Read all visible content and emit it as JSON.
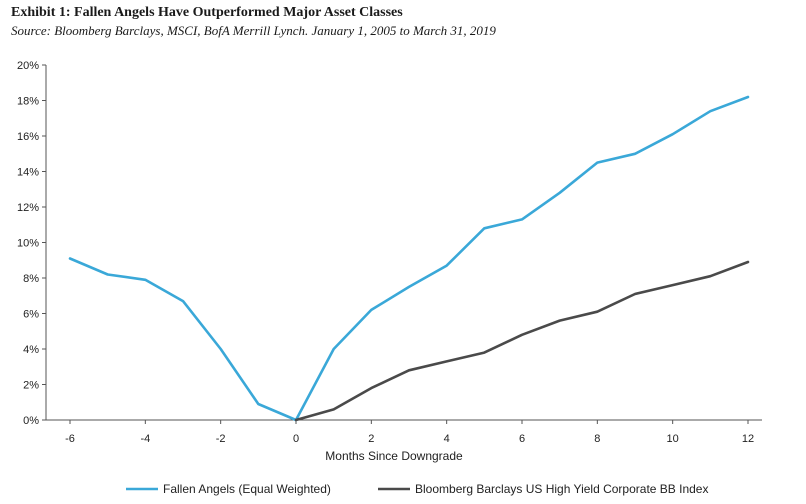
{
  "header": {
    "title": "Exhibit 1: Fallen Angels Have Outperformed Major Asset Classes",
    "subtitle": "Source: Bloomberg Barclays, MSCI, BofA Merrill Lynch. January 1, 2005 to March 31, 2019"
  },
  "chart_data": {
    "type": "line",
    "xlabel": "Months Since Downgrade",
    "ylabel": "",
    "xlim": [
      -6,
      12
    ],
    "ylim": [
      0,
      20
    ],
    "x_ticks": [
      "-6",
      "-4",
      "-2",
      "0",
      "2",
      "4",
      "6",
      "8",
      "10",
      "12"
    ],
    "y_ticks": [
      "0%",
      "2%",
      "4%",
      "6%",
      "8%",
      "10%",
      "12%",
      "14%",
      "16%",
      "18%",
      "20%"
    ],
    "grid": false,
    "legend_position": "bottom",
    "series": [
      {
        "name": "Fallen Angels (Equal Weighted)",
        "color": "#3aa8d8",
        "x": [
          -6,
          -5,
          -4,
          -3,
          -2,
          -1,
          0,
          1,
          2,
          3,
          4,
          5,
          6,
          7,
          8,
          9,
          10,
          11,
          12
        ],
        "values": [
          9.1,
          8.2,
          7.9,
          6.7,
          4.0,
          0.9,
          0.0,
          4.0,
          6.2,
          7.5,
          8.7,
          10.8,
          11.3,
          12.8,
          14.5,
          15.0,
          16.1,
          17.4,
          18.2
        ]
      },
      {
        "name": "Bloomberg Barclays US High Yield Corporate BB Index",
        "color": "#4a4a4a",
        "x": [
          0,
          1,
          2,
          3,
          4,
          5,
          6,
          7,
          8,
          9,
          10,
          11,
          12
        ],
        "values": [
          0.0,
          0.6,
          1.8,
          2.8,
          3.3,
          3.8,
          4.8,
          5.6,
          6.1,
          7.1,
          7.6,
          8.1,
          8.9
        ]
      }
    ]
  }
}
